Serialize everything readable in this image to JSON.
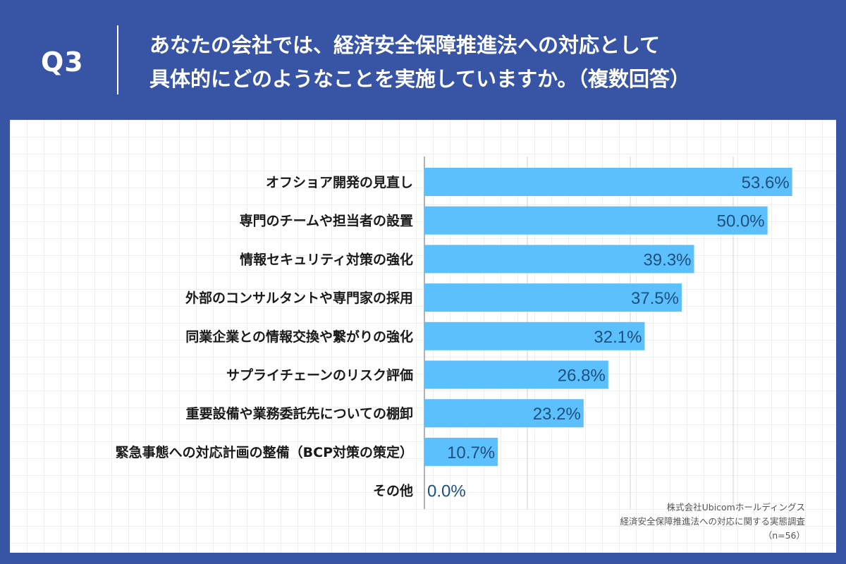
{
  "header": {
    "question": "Q3",
    "title_line1": "あなたの会社では、経済安全保障推進法への対応として",
    "title_line2": "具体的にどのようなことを実施していますか。（複数回答）"
  },
  "source": {
    "company": "株式会社Ubicomホールディングス",
    "survey": "経済安全保障推進法への対応に関する実態調査",
    "sample": "（n=56）"
  },
  "colors": {
    "bar": "#5bc0fb",
    "background": "#3754a5",
    "value_text": "#1f4f80"
  },
  "chart_data": {
    "type": "bar",
    "orientation": "horizontal",
    "categories": [
      "オフショア開発の見直し",
      "専門のチームや担当者の設置",
      "情報セキュリティ対策の強化",
      "外部のコンサルタントや専門家の採用",
      "同業企業との情報交換や繋がりの強化",
      "サプライチェーンのリスク評価",
      "重要設備や業務委託先についての棚卸",
      "緊急事態への対応計画の整備（BCP対策の策定）",
      "その他"
    ],
    "values": [
      53.6,
      50.0,
      39.3,
      37.5,
      32.1,
      26.8,
      23.2,
      10.7,
      0.0
    ],
    "value_labels": [
      "53.6%",
      "50.0%",
      "39.3%",
      "37.5%",
      "32.1%",
      "26.8%",
      "23.2%",
      "10.7%",
      "0.0%"
    ],
    "xlim": [
      0,
      60
    ],
    "gridlines": [
      0,
      15,
      30,
      45
    ],
    "title": "",
    "xlabel": "",
    "ylabel": ""
  }
}
